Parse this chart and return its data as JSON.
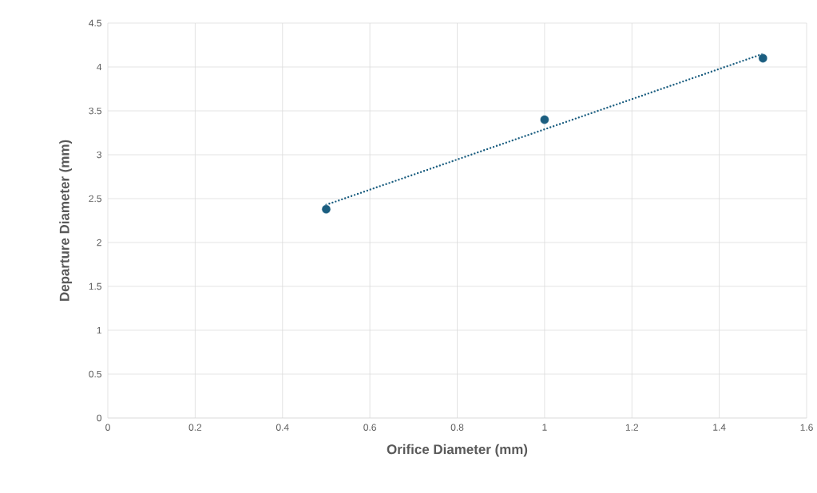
{
  "chart_data": {
    "type": "scatter",
    "xlabel": "Orifice Diameter (mm)",
    "ylabel": "Departure Diameter (mm)",
    "xlim": [
      0,
      1.6
    ],
    "xticks": [
      0,
      0.2,
      0.4,
      0.6,
      0.8,
      1,
      1.2,
      1.4,
      1.6
    ],
    "ylim": [
      0,
      4.5
    ],
    "yticks": [
      0,
      0.5,
      1,
      1.5,
      2,
      2.5,
      3,
      3.5,
      4,
      4.5
    ],
    "grid": true,
    "series": [
      {
        "type": "scatter",
        "marker": "circle",
        "color": "#1b5e80",
        "x": [
          0.5,
          1,
          1.5
        ],
        "values": [
          2.38,
          3.4,
          4.1
        ]
      },
      {
        "type": "line",
        "line_style": "dotted",
        "marker": "none",
        "color": "#1b5e80",
        "x": [
          0.5,
          1.5
        ],
        "values": [
          2.43,
          4.15
        ]
      }
    ]
  }
}
